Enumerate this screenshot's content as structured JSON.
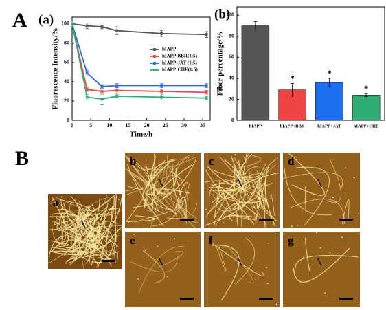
{
  "panel_labels": {
    "A": "A",
    "a": "(a)",
    "b": "(b)",
    "B": "B"
  },
  "chart_data": [
    {
      "type": "line",
      "xlabel": "Time/h",
      "ylabel": "Fluorescence Intensity/%",
      "x": [
        0,
        4,
        8,
        12,
        24,
        36
      ],
      "xlim": [
        0,
        37
      ],
      "xticks": [
        0,
        5,
        10,
        15,
        20,
        25,
        30,
        35
      ],
      "ylim": [
        0,
        107
      ],
      "yticks": [
        0,
        20,
        40,
        60,
        80,
        100
      ],
      "legend": "right",
      "series": [
        {
          "name": "hIAPP",
          "color": "#555555",
          "values": [
            100,
            98,
            97,
            93,
            90,
            89
          ],
          "errors": [
            3,
            3,
            2,
            4,
            3,
            3
          ]
        },
        {
          "name": "hIAPP:BBR(1:5)",
          "color": "#e84a4a",
          "values": [
            100,
            32,
            30,
            31,
            30,
            29
          ],
          "errors": [
            3,
            2,
            3,
            3,
            2,
            2
          ]
        },
        {
          "name": "hIAPP:JAT (1:5)",
          "color": "#2a6ee0",
          "values": [
            100,
            49,
            35,
            36,
            36,
            36
          ],
          "errors": [
            3,
            3,
            2,
            2,
            2,
            2
          ]
        },
        {
          "name": "hIAPP:CHE(1:5)",
          "color": "#2eae74",
          "values": [
            100,
            24,
            22,
            25,
            24,
            23
          ],
          "errors": [
            3,
            3,
            6,
            2,
            3,
            2
          ]
        }
      ]
    },
    {
      "type": "bar",
      "ylabel": "Fiber percentage/%",
      "categories": [
        "hIAPP",
        "hIAPP+BBR",
        "hIAPP+JAT",
        "hIAPP+CHE"
      ],
      "values": [
        90,
        29,
        36,
        24
      ],
      "errors": [
        4,
        6,
        4,
        1.5
      ],
      "colors": [
        "#555555",
        "#ee4444",
        "#1c6ef0",
        "#2eae74"
      ],
      "significance": [
        null,
        "*",
        "*",
        "*"
      ],
      "ylim": [
        0,
        108
      ],
      "yticks": [
        0,
        20,
        40,
        60,
        80,
        100
      ]
    }
  ],
  "images": [
    {
      "label": "a"
    },
    {
      "label": "b"
    },
    {
      "label": "c"
    },
    {
      "label": "d"
    },
    {
      "label": "e"
    },
    {
      "label": "f"
    },
    {
      "label": "g"
    }
  ]
}
